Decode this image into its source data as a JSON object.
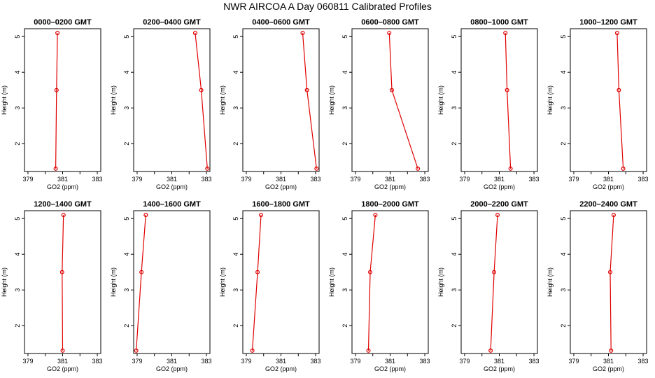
{
  "title": "NWR AIRCOA A  Day 060811  Calibrated Profiles",
  "line_color": "#e00000",
  "marker_color": "#e00000",
  "chart_data": [
    {
      "type": "line",
      "title": "0000–0200 GMT",
      "xlabel": "GO2 (ppm)",
      "ylabel": "Height (m)",
      "xlim": [
        378.8,
        383.2
      ],
      "ylim": [
        1.22,
        5.22
      ],
      "xticks": [
        379,
        380,
        381,
        382,
        383
      ],
      "xtick_labels": [
        "379",
        "",
        "381",
        "",
        "383"
      ],
      "yticks": [
        2,
        3,
        4,
        5
      ],
      "x": [
        380.6,
        380.65,
        380.7
      ],
      "y": [
        1.3,
        3.5,
        5.1
      ]
    },
    {
      "type": "line",
      "title": "0200–0400 GMT",
      "xlabel": "GO2 (ppm)",
      "ylabel": "Height (m)",
      "xlim": [
        378.8,
        383.2
      ],
      "ylim": [
        1.22,
        5.22
      ],
      "xticks": [
        379,
        380,
        381,
        382,
        383
      ],
      "xtick_labels": [
        "379",
        "",
        "381",
        "",
        "383"
      ],
      "yticks": [
        2,
        3,
        4,
        5
      ],
      "x": [
        383.05,
        382.7,
        382.35
      ],
      "y": [
        1.3,
        3.5,
        5.1
      ]
    },
    {
      "type": "line",
      "title": "0400–0600 GMT",
      "xlabel": "GO2 (ppm)",
      "ylabel": "Height (m)",
      "xlim": [
        378.8,
        383.2
      ],
      "ylim": [
        1.22,
        5.22
      ],
      "xticks": [
        379,
        380,
        381,
        382,
        383
      ],
      "xtick_labels": [
        "379",
        "",
        "381",
        "",
        "383"
      ],
      "yticks": [
        2,
        3,
        4,
        5
      ],
      "x": [
        383.05,
        382.5,
        382.25
      ],
      "y": [
        1.3,
        3.5,
        5.1
      ]
    },
    {
      "type": "line",
      "title": "0600–0800 GMT",
      "xlabel": "GO2 (ppm)",
      "ylabel": "Height (m)",
      "xlim": [
        378.8,
        383.2
      ],
      "ylim": [
        1.22,
        5.22
      ],
      "xticks": [
        379,
        380,
        381,
        382,
        383
      ],
      "xtick_labels": [
        "379",
        "",
        "381",
        "",
        "383"
      ],
      "yticks": [
        2,
        3,
        4,
        5
      ],
      "x": [
        382.6,
        381.1,
        380.95
      ],
      "y": [
        1.3,
        3.5,
        5.1
      ]
    },
    {
      "type": "line",
      "title": "0800–1000 GMT",
      "xlabel": "GO2 (ppm)",
      "ylabel": "Height (m)",
      "xlim": [
        378.8,
        383.2
      ],
      "ylim": [
        1.22,
        5.22
      ],
      "xticks": [
        379,
        380,
        381,
        382,
        383
      ],
      "xtick_labels": [
        "379",
        "",
        "381",
        "",
        "383"
      ],
      "yticks": [
        2,
        3,
        4,
        5
      ],
      "x": [
        381.65,
        381.45,
        381.35
      ],
      "y": [
        1.3,
        3.5,
        5.1
      ]
    },
    {
      "type": "line",
      "title": "1000–1200 GMT",
      "xlabel": "GO2 (ppm)",
      "ylabel": "Height (m)",
      "xlim": [
        378.8,
        383.2
      ],
      "ylim": [
        1.22,
        5.22
      ],
      "xticks": [
        379,
        380,
        381,
        382,
        383
      ],
      "xtick_labels": [
        "379",
        "",
        "381",
        "",
        "383"
      ],
      "yticks": [
        2,
        3,
        4,
        5
      ],
      "x": [
        381.85,
        381.6,
        381.5
      ],
      "y": [
        1.3,
        3.5,
        5.1
      ]
    },
    {
      "type": "line",
      "title": "1200–1400 GMT",
      "xlabel": "GO2 (ppm)",
      "ylabel": "Height (m)",
      "xlim": [
        378.8,
        383.2
      ],
      "ylim": [
        1.22,
        5.22
      ],
      "xticks": [
        379,
        380,
        381,
        382,
        383
      ],
      "xtick_labels": [
        "379",
        "",
        "381",
        "",
        "383"
      ],
      "yticks": [
        2,
        3,
        4,
        5
      ],
      "x": [
        381.0,
        380.97,
        381.05
      ],
      "y": [
        1.3,
        3.5,
        5.1
      ]
    },
    {
      "type": "line",
      "title": "1400–1600 GMT",
      "xlabel": "GO2 (ppm)",
      "ylabel": "Height (m)",
      "xlim": [
        378.8,
        383.2
      ],
      "ylim": [
        1.22,
        5.22
      ],
      "xticks": [
        379,
        380,
        381,
        382,
        383
      ],
      "xtick_labels": [
        "379",
        "",
        "381",
        "",
        "383"
      ],
      "yticks": [
        2,
        3,
        4,
        5
      ],
      "x": [
        378.95,
        379.25,
        379.5
      ],
      "y": [
        1.3,
        3.5,
        5.1
      ]
    },
    {
      "type": "line",
      "title": "1600–1800 GMT",
      "xlabel": "GO2 (ppm)",
      "ylabel": "Height (m)",
      "xlim": [
        378.8,
        383.2
      ],
      "ylim": [
        1.22,
        5.22
      ],
      "xticks": [
        379,
        380,
        381,
        382,
        383
      ],
      "xtick_labels": [
        "379",
        "",
        "381",
        "",
        "383"
      ],
      "yticks": [
        2,
        3,
        4,
        5
      ],
      "x": [
        379.35,
        379.65,
        379.85
      ],
      "y": [
        1.3,
        3.5,
        5.1
      ]
    },
    {
      "type": "line",
      "title": "1800–2000 GMT",
      "xlabel": "GO2 (ppm)",
      "ylabel": "Height (m)",
      "xlim": [
        378.8,
        383.2
      ],
      "ylim": [
        1.22,
        5.22
      ],
      "xticks": [
        379,
        380,
        381,
        382,
        383
      ],
      "xtick_labels": [
        "379",
        "",
        "381",
        "",
        "383"
      ],
      "yticks": [
        2,
        3,
        4,
        5
      ],
      "x": [
        379.75,
        379.85,
        380.15
      ],
      "y": [
        1.3,
        3.5,
        5.1
      ]
    },
    {
      "type": "line",
      "title": "2000–2200 GMT",
      "xlabel": "GO2 (ppm)",
      "ylabel": "Height (m)",
      "xlim": [
        378.8,
        383.2
      ],
      "ylim": [
        1.22,
        5.22
      ],
      "xticks": [
        379,
        380,
        381,
        382,
        383
      ],
      "xtick_labels": [
        "379",
        "",
        "381",
        "",
        "383"
      ],
      "yticks": [
        2,
        3,
        4,
        5
      ],
      "x": [
        380.5,
        380.7,
        380.9
      ],
      "y": [
        1.3,
        3.5,
        5.1
      ]
    },
    {
      "type": "line",
      "title": "2200–2400 GMT",
      "xlabel": "GO2 (ppm)",
      "ylabel": "Height (m)",
      "xlim": [
        378.8,
        383.2
      ],
      "ylim": [
        1.22,
        5.22
      ],
      "xticks": [
        379,
        380,
        381,
        382,
        383
      ],
      "xtick_labels": [
        "379",
        "",
        "381",
        "",
        "383"
      ],
      "yticks": [
        2,
        3,
        4,
        5
      ],
      "x": [
        381.15,
        381.1,
        381.3
      ],
      "y": [
        1.3,
        3.5,
        5.1
      ]
    }
  ]
}
